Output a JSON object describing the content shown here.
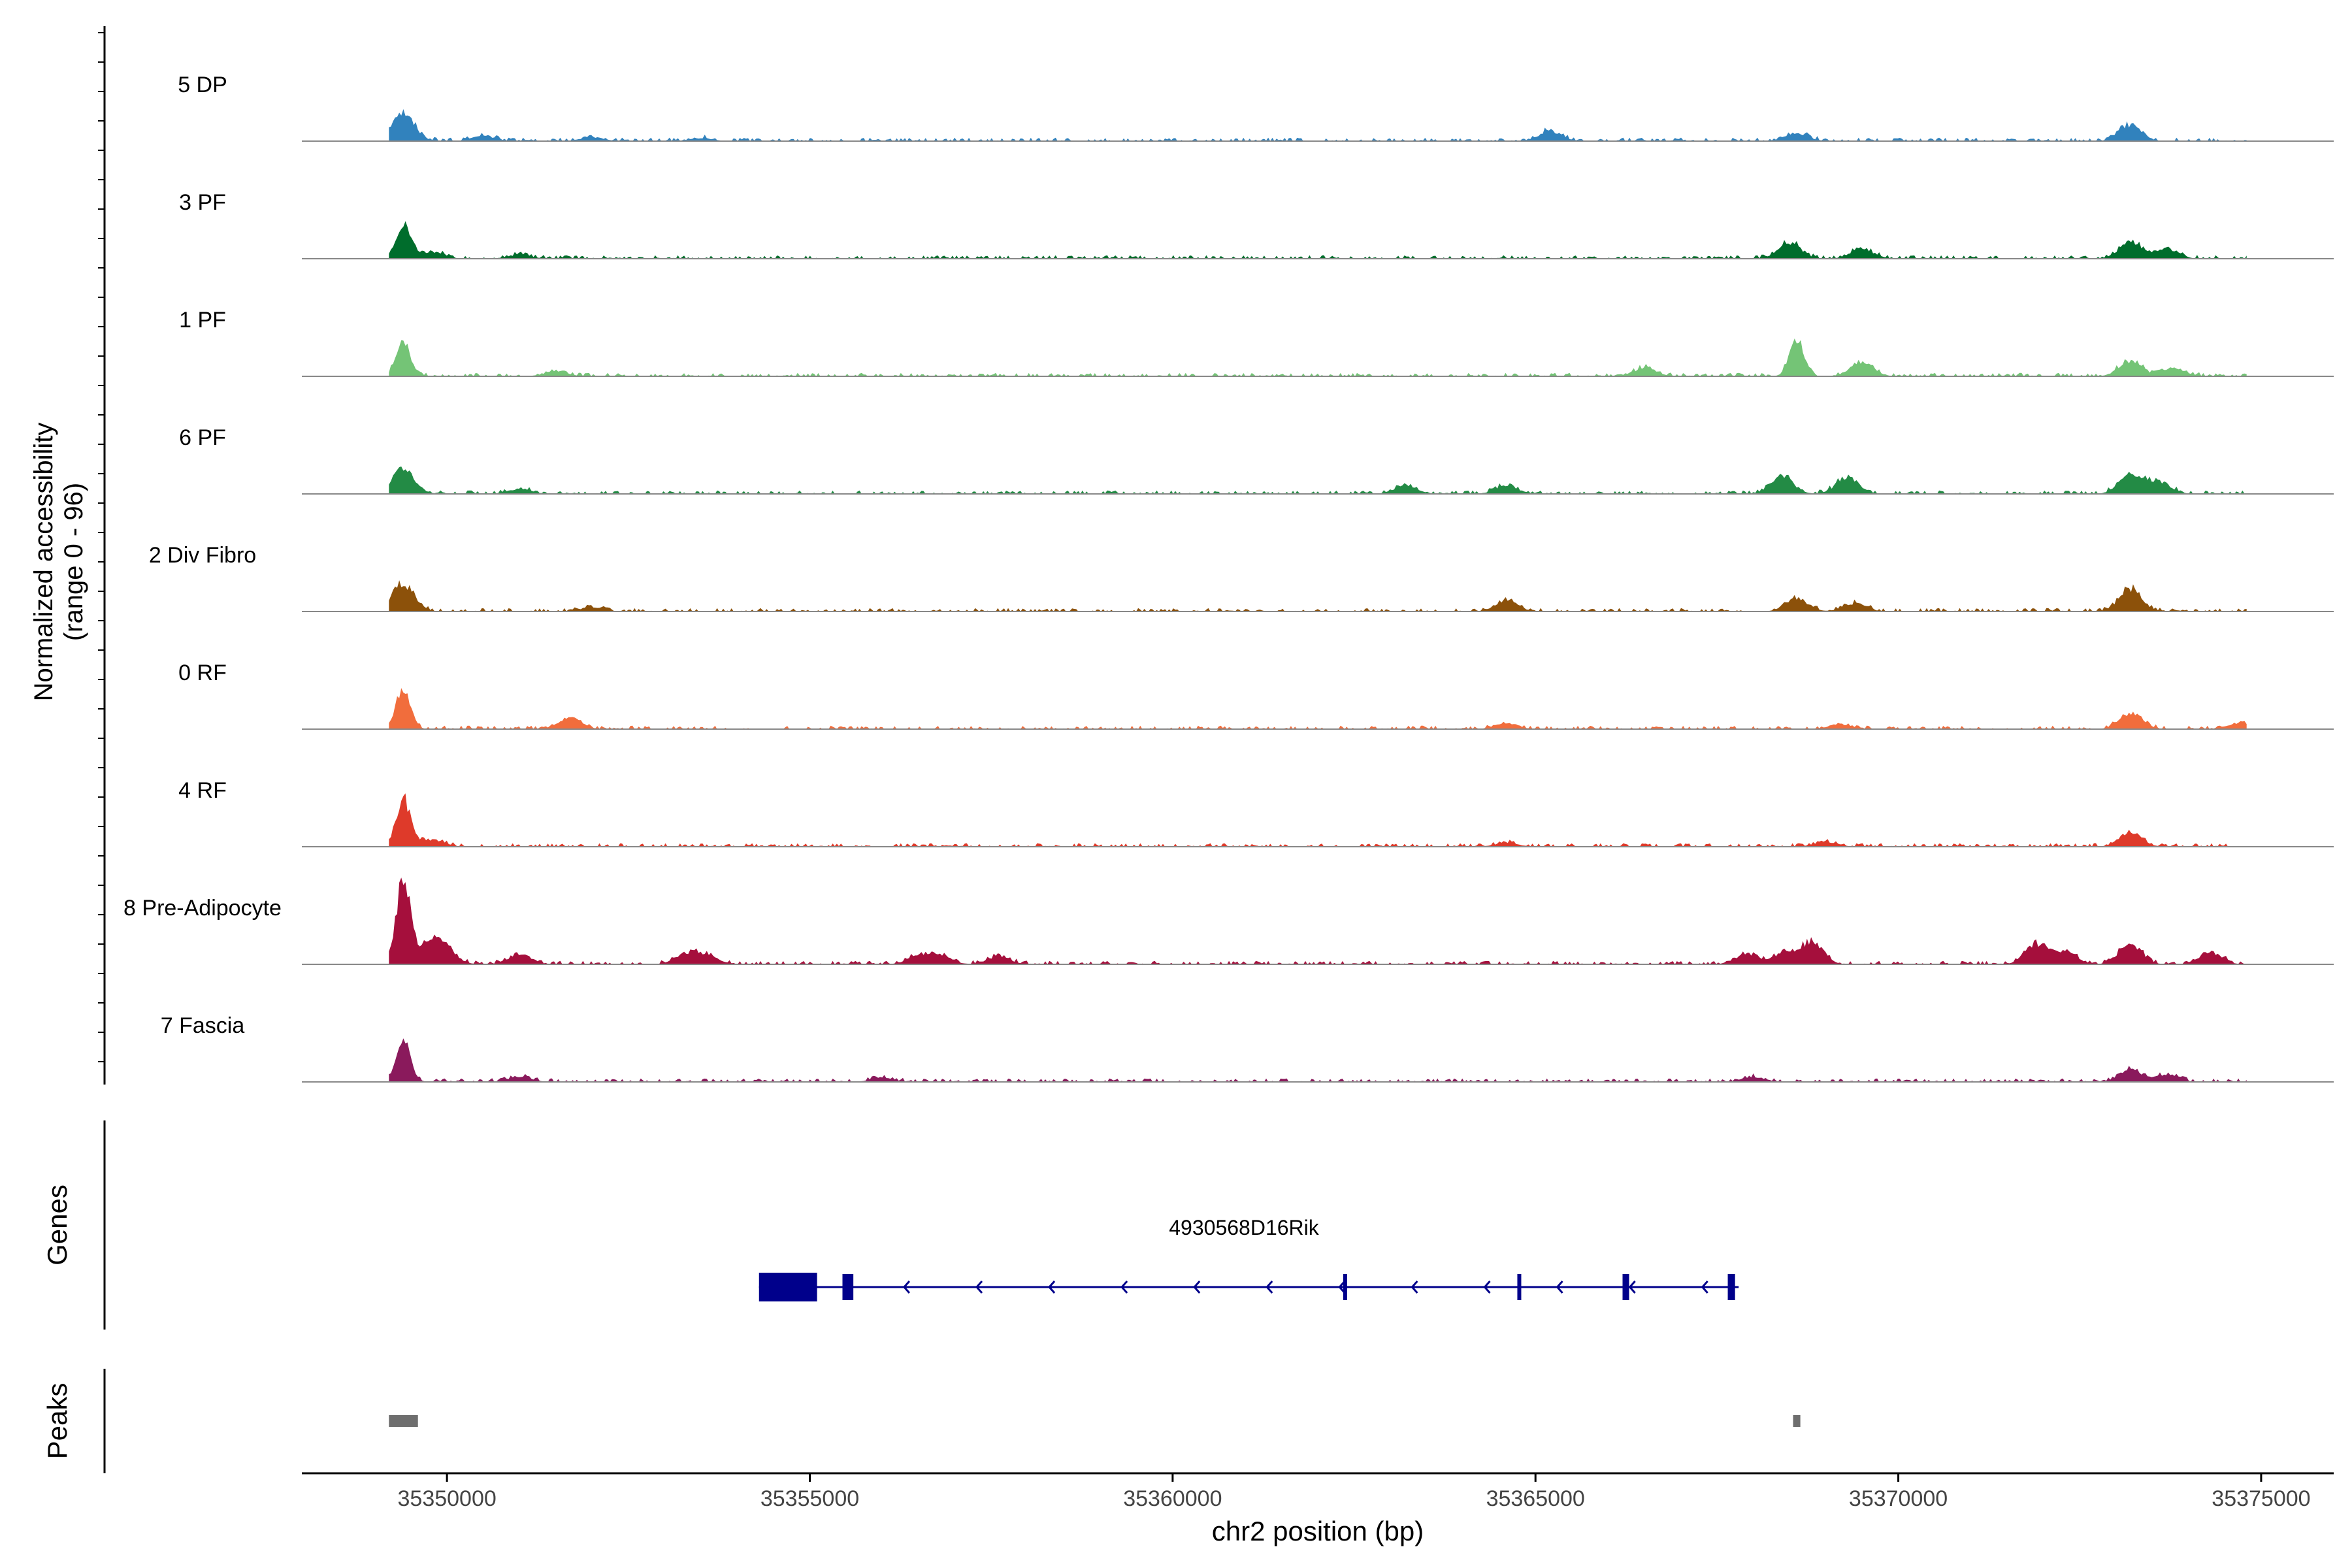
{
  "chart_data": {
    "type": "area",
    "region": "chr2",
    "ylabel": "Normalized accessibility",
    "ylabel_range": "(range 0 - 96)",
    "ylim": [
      0,
      96
    ],
    "xlabel": "chr2 position (bp)",
    "xlim": [
      35348000,
      35376000
    ],
    "xticks": [
      35350000,
      35355000,
      35360000,
      35365000,
      35370000,
      35375000
    ],
    "xtick_labels": [
      "35350000",
      "35355000",
      "35360000",
      "35365000",
      "35370000",
      "35375000"
    ],
    "coverage_extent": [
      35349200,
      35374800
    ],
    "tracks": [
      {
        "name": "5 DP",
        "color": "#3182bd",
        "peaks": [
          [
            35349400,
            0.26
          ],
          [
            35350500,
            0.05
          ],
          [
            35352000,
            0.04
          ],
          [
            35353500,
            0.03
          ],
          [
            35365200,
            0.1
          ],
          [
            35368600,
            0.08
          ],
          [
            35373200,
            0.16
          ]
        ]
      },
      {
        "name": "3 PF",
        "color": "#006d2c",
        "peaks": [
          [
            35349400,
            0.34
          ],
          [
            35349800,
            0.07
          ],
          [
            35351000,
            0.04
          ],
          [
            35368500,
            0.16
          ],
          [
            35369500,
            0.1
          ],
          [
            35373200,
            0.17
          ],
          [
            35373700,
            0.1
          ]
        ]
      },
      {
        "name": "1 PF",
        "color": "#74c476",
        "peaks": [
          [
            35349400,
            0.33
          ],
          [
            35351500,
            0.05
          ],
          [
            35366500,
            0.08
          ],
          [
            35368600,
            0.36
          ],
          [
            35369500,
            0.14
          ],
          [
            35373200,
            0.15
          ],
          [
            35373800,
            0.08
          ]
        ]
      },
      {
        "name": "6 PF",
        "color": "#238b45",
        "peaks": [
          [
            35349400,
            0.24
          ],
          [
            35351000,
            0.05
          ],
          [
            35363200,
            0.08
          ],
          [
            35364600,
            0.08
          ],
          [
            35368400,
            0.17
          ],
          [
            35369300,
            0.16
          ],
          [
            35373200,
            0.2
          ],
          [
            35373600,
            0.12
          ]
        ]
      },
      {
        "name": "2 Div Fibro",
        "color": "#8c510a",
        "peaks": [
          [
            35349400,
            0.27
          ],
          [
            35352000,
            0.04
          ],
          [
            35364600,
            0.11
          ],
          [
            35368600,
            0.13
          ],
          [
            35369400,
            0.08
          ],
          [
            35373200,
            0.22
          ]
        ]
      },
      {
        "name": "0 RF",
        "color": "#f16d3c",
        "peaks": [
          [
            35349400,
            0.41
          ],
          [
            35351700,
            0.11
          ],
          [
            35364600,
            0.06
          ],
          [
            35369200,
            0.05
          ],
          [
            35373200,
            0.16
          ],
          [
            35374700,
            0.06
          ]
        ]
      },
      {
        "name": "4 RF",
        "color": "#de3a2a",
        "peaks": [
          [
            35349400,
            0.47
          ],
          [
            35349800,
            0.07
          ],
          [
            35364600,
            0.04
          ],
          [
            35369000,
            0.05
          ],
          [
            35373200,
            0.14
          ]
        ]
      },
      {
        "name": "8 Pre-Adipocyte",
        "color": "#a50f3c",
        "peaks": [
          [
            35349400,
            0.85
          ],
          [
            35349800,
            0.22
          ],
          [
            35350000,
            0.1
          ],
          [
            35351000,
            0.1
          ],
          [
            35353300,
            0.1
          ],
          [
            35353600,
            0.08
          ],
          [
            35356500,
            0.08
          ],
          [
            35356800,
            0.08
          ],
          [
            35357600,
            0.08
          ],
          [
            35367900,
            0.1
          ],
          [
            35368400,
            0.1
          ],
          [
            35368800,
            0.22
          ],
          [
            35371900,
            0.2
          ],
          [
            35372300,
            0.12
          ],
          [
            35373200,
            0.2
          ],
          [
            35374300,
            0.12
          ]
        ]
      },
      {
        "name": "7 Fascia",
        "color": "#8a1a5c",
        "peaks": [
          [
            35349400,
            0.41
          ],
          [
            35351000,
            0.05
          ],
          [
            35356000,
            0.04
          ],
          [
            35368000,
            0.05
          ],
          [
            35373200,
            0.12
          ],
          [
            35373700,
            0.07
          ]
        ]
      }
    ],
    "genes_label": "Genes",
    "gene": {
      "name": "4930568D16Rik",
      "start": 35354300,
      "end": 35367800,
      "strand": "-",
      "exons": [
        [
          35354300,
          35355100
        ],
        [
          35355450,
          35355600
        ],
        [
          35362350,
          35362400
        ],
        [
          35364750,
          35364780
        ],
        [
          35366200,
          35366290
        ],
        [
          35367650,
          35367750
        ]
      ]
    },
    "peaks_label": "Peaks",
    "peak_regions": [
      [
        35349200,
        35349600
      ],
      [
        35368550,
        35368650
      ]
    ]
  }
}
